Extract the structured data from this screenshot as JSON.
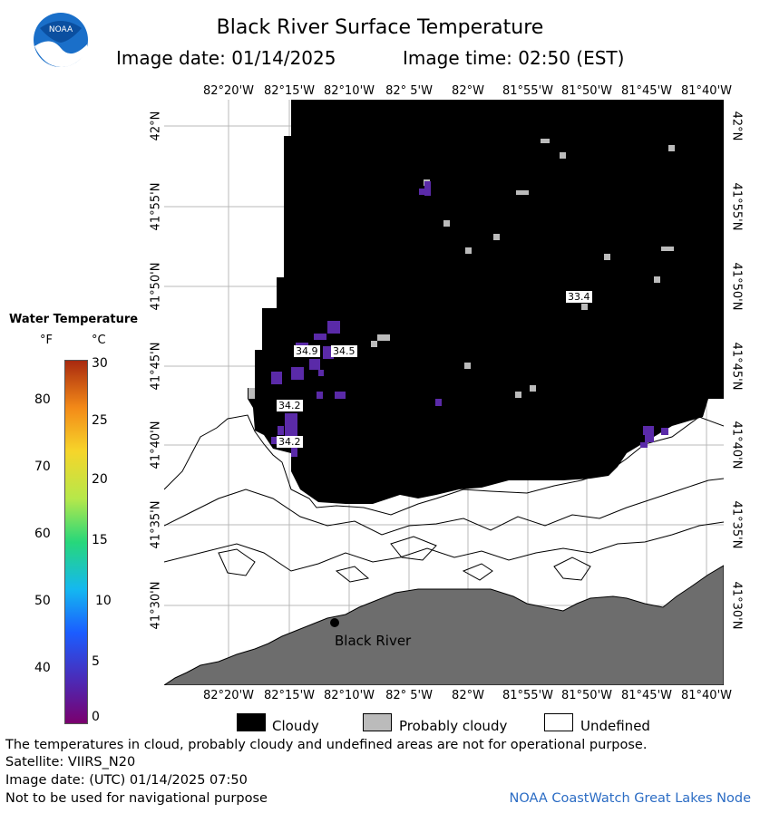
{
  "header": {
    "title": "Black River Surface Temperature",
    "image_date": "Image date: 01/14/2025",
    "image_time": "Image time: 02:50 (EST)",
    "logo_text": "NOAA"
  },
  "map": {
    "lon_labels": [
      "82°20'W",
      "82°15'W",
      "82°10'W",
      "82° 5'W",
      "82°W",
      "81°55'W",
      "81°50'W",
      "81°45'W",
      "81°40'W"
    ],
    "lat_labels": [
      "42°N",
      "41°55'N",
      "41°50'N",
      "41°45'N",
      "41°40'N",
      "41°35'N",
      "41°30'N"
    ],
    "place_label": "Black River",
    "temp_labels": [
      "34.9",
      "34.5",
      "34.2",
      "34.2",
      "33.4"
    ],
    "colors": {
      "cloud": "#000000",
      "land": "#6b6b6b",
      "probably_cloudy": "#bbbbbb",
      "water_cold": "#5a2aa8"
    }
  },
  "legend": {
    "title": "Water Temperature",
    "unit_f": "°F",
    "unit_c": "°C",
    "f_ticks": [
      "80",
      "70",
      "60",
      "50",
      "40"
    ],
    "c_ticks": [
      "30",
      "25",
      "20",
      "15",
      "10",
      "5",
      "0"
    ],
    "cloudy": "Cloudy",
    "probably_cloudy": "Probably cloudy",
    "undefined": "Undefined"
  },
  "footer": {
    "disclaimer": "The temperatures in cloud, probably cloudy and undefined areas are not for operational purpose.",
    "satellite": "Satellite: VIIRS_N20",
    "utc_date": "Image date: (UTC) 01/14/2025  07:50",
    "nav": "Not to be used for navigational purpose",
    "credit": "NOAA CoastWatch Great Lakes Node"
  }
}
